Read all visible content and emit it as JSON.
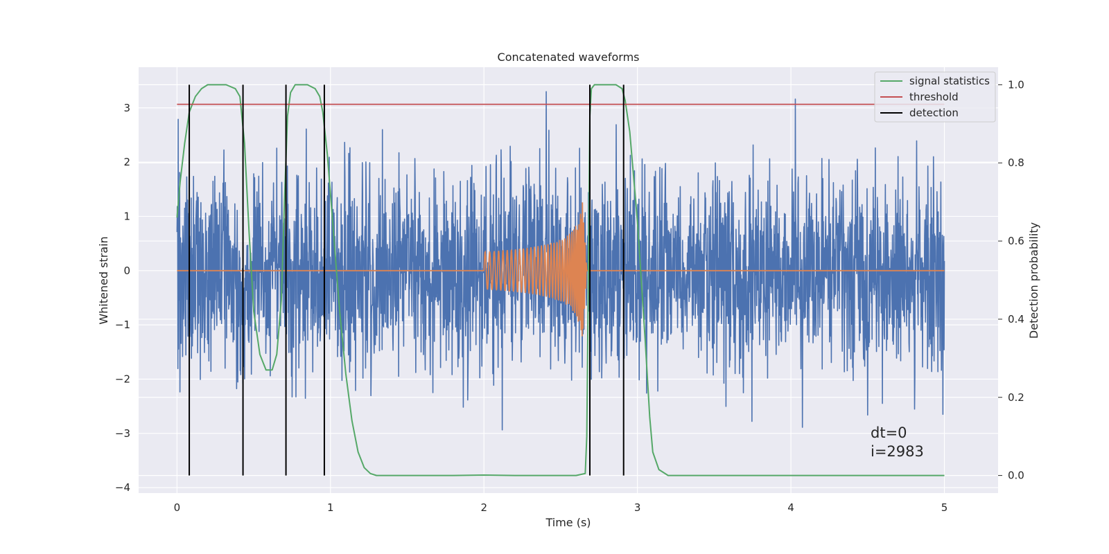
{
  "chart_data": {
    "type": "line",
    "title": "Concatenated waveforms",
    "xlabel": "Time (s)",
    "ylabel": "Whitened strain",
    "y2label": "Detection probability",
    "xlim": [
      -0.25,
      5.35
    ],
    "ylim": [
      -4.1,
      3.75
    ],
    "y2lim": [
      -0.045,
      1.045
    ],
    "x_ticks": [
      0,
      1,
      2,
      3,
      4,
      5
    ],
    "y_ticks": [
      -4,
      -3,
      -2,
      -1,
      0,
      1,
      2,
      3
    ],
    "y2_ticks": [
      0.0,
      0.2,
      0.4,
      0.6,
      0.8,
      1.0
    ],
    "x_tick_labels": [
      "0",
      "1",
      "2",
      "3",
      "4",
      "5"
    ],
    "y_tick_labels": [
      "−4",
      "−3",
      "−2",
      "−1",
      "0",
      "1",
      "2",
      "3"
    ],
    "y2_tick_labels": [
      "0.0",
      "0.2",
      "0.4",
      "0.6",
      "0.8",
      "1.0"
    ],
    "grid": true,
    "legend_position": "top-right",
    "colors": {
      "plot_bg": "#eaeaf2",
      "grid": "#ffffff",
      "noise": "#4c72b0",
      "waveform": "#dd8452",
      "signal_statistics": "#55a868",
      "threshold": "#c44e52",
      "detection": "#000000"
    },
    "series": [
      {
        "name": "noise",
        "axis": "left",
        "t_range": [
          0,
          5
        ],
        "typical_std": 0.9,
        "max_abs": 3.3
      },
      {
        "name": "waveform",
        "axis": "left",
        "t_range": [
          0,
          5
        ],
        "chirp_start": 2.0,
        "merger": 2.64,
        "peak_amplitude": 1.4
      },
      {
        "name": "signal statistics",
        "axis": "right",
        "x": [
          0,
          0.02,
          0.05,
          0.08,
          0.12,
          0.16,
          0.2,
          0.25,
          0.32,
          0.38,
          0.41,
          0.44,
          0.47,
          0.5,
          0.54,
          0.58,
          0.62,
          0.65,
          0.68,
          0.7,
          0.72,
          0.74,
          0.77,
          0.8,
          0.85,
          0.9,
          0.93,
          0.95,
          0.98,
          1.02,
          1.06,
          1.1,
          1.14,
          1.18,
          1.22,
          1.26,
          1.3,
          1.5,
          1.8,
          2.0,
          2.2,
          2.4,
          2.6,
          2.66,
          2.67,
          2.68,
          2.69,
          2.7,
          2.72,
          2.75,
          2.8,
          2.86,
          2.9,
          2.92,
          2.95,
          3.0,
          3.05,
          3.08,
          3.1,
          3.14,
          3.2,
          3.5,
          4.0,
          4.5,
          5.0
        ],
        "values": [
          0.66,
          0.75,
          0.85,
          0.93,
          0.97,
          0.99,
          1.0,
          1.0,
          1.0,
          0.99,
          0.97,
          0.85,
          0.62,
          0.42,
          0.31,
          0.27,
          0.27,
          0.31,
          0.45,
          0.7,
          0.92,
          0.98,
          1.0,
          1.0,
          1.0,
          0.99,
          0.97,
          0.93,
          0.82,
          0.62,
          0.42,
          0.26,
          0.14,
          0.06,
          0.02,
          0.005,
          0.0,
          0.0,
          0.0,
          0.001,
          0.0,
          0.0,
          0.0,
          0.005,
          0.1,
          0.5,
          0.92,
          0.99,
          1.0,
          1.0,
          1.0,
          1.0,
          0.99,
          0.96,
          0.88,
          0.65,
          0.35,
          0.15,
          0.06,
          0.015,
          0.0,
          0.0,
          0.0,
          0.0,
          0.0
        ]
      },
      {
        "name": "threshold",
        "axis": "right",
        "x": [
          0,
          5
        ],
        "values": [
          0.95,
          0.95
        ]
      },
      {
        "name": "detection",
        "axis": "right",
        "vertical_lines_x": [
          0.08,
          0.43,
          0.71,
          0.96,
          2.69,
          2.91
        ],
        "y_range": [
          0.0,
          1.0
        ]
      }
    ],
    "legend": [
      "signal statistics",
      "threshold",
      "detection"
    ],
    "annotation": {
      "dt": "dt=0",
      "i": "i=2983",
      "x": 4.5,
      "y": -2.9
    }
  }
}
